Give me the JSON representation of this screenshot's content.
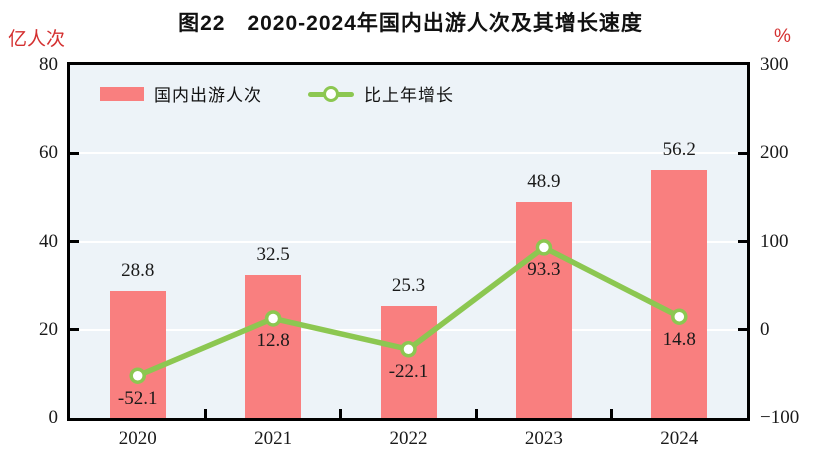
{
  "title": "图22　2020-2024年国内出游人次及其增长速度",
  "left_axis": {
    "unit": "亿人次",
    "ticks": [
      80,
      60,
      40,
      20,
      0
    ],
    "min": 0,
    "max": 80
  },
  "right_axis": {
    "unit": "%",
    "ticks": [
      300,
      200,
      100,
      0,
      -100
    ],
    "min": -100,
    "max": 300
  },
  "legend": {
    "items": [
      {
        "label": "国内出游人次",
        "type": "bar"
      },
      {
        "label": "比上年增长",
        "type": "line"
      }
    ]
  },
  "colors": {
    "bar": "#f97f7f",
    "line": "#8cc751",
    "marker_fill": "#ffffff",
    "plot_bg": "#edf3f8",
    "gridline": "#ffffff",
    "axis_unit_text": "#d43030",
    "text": "#1a1a1a"
  },
  "chart_data": {
    "type": "bar+line combo",
    "title": "图22　2020-2024年国内出游人次及其增长速度",
    "categories": [
      "2020",
      "2021",
      "2022",
      "2023",
      "2024"
    ],
    "series": [
      {
        "name": "国内出游人次",
        "type": "bar",
        "axis": "left",
        "unit": "亿人次",
        "values": [
          28.8,
          32.5,
          25.3,
          48.9,
          56.2
        ]
      },
      {
        "name": "比上年增长",
        "type": "line",
        "axis": "right",
        "unit": "%",
        "values": [
          -52.1,
          12.8,
          -22.1,
          93.3,
          14.8
        ]
      }
    ],
    "left_ylim": [
      0,
      80
    ],
    "right_ylim": [
      -100,
      300
    ],
    "grid": "horizontal white gridlines at shared tick positions",
    "legend_position": "top-left inside plot"
  }
}
